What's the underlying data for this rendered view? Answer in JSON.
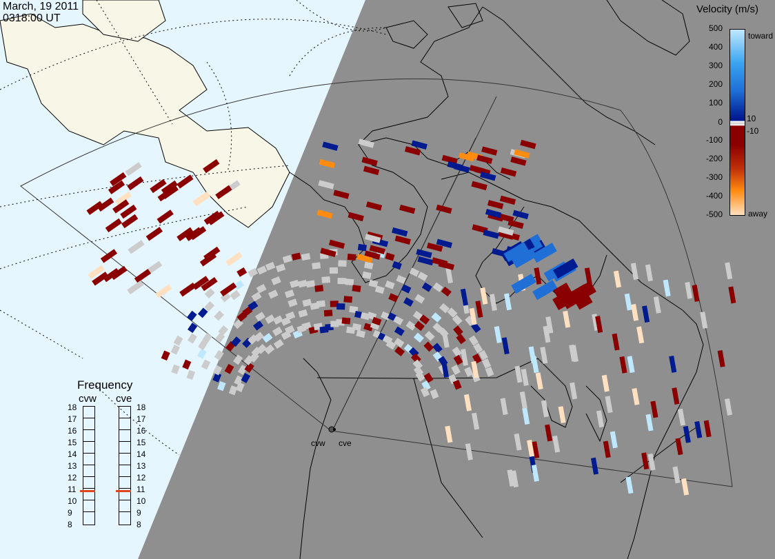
{
  "header": {
    "date": "March, 19 2011",
    "time": "0318:00 UT"
  },
  "velocity_scale": {
    "title": "Velocity (m/s)",
    "ticks": [
      "500",
      "400",
      "300",
      "200",
      "100",
      "10",
      "0",
      "-10",
      "-100",
      "-200",
      "-300",
      "-400",
      "-500"
    ],
    "toward_label": "toward",
    "away_label": "away",
    "colors": {
      "toward_max": "#bfe8ff",
      "toward_high": "#3aa4ef",
      "toward_mid": "#1f6fd6",
      "toward_low": "#001a8f",
      "ground": "#cccccc",
      "away_low": "#8a0000",
      "away_mid": "#c0300a",
      "away_high": "#ff8c10",
      "away_max": "#ffe0c0"
    }
  },
  "frequency_panel": {
    "title": "Frequency",
    "radars": [
      "cvw",
      "cve"
    ],
    "levels": [
      "18",
      "17",
      "16",
      "15",
      "14",
      "13",
      "12",
      "11",
      "10",
      "9",
      "8"
    ],
    "selected_mhz": {
      "cvw": 10.8,
      "cve": 10.8
    }
  },
  "map": {
    "sites": [
      "cvw",
      "cve"
    ],
    "colors": {
      "night_side": "#8f8f8f",
      "day_ocean": "#e6f6ff",
      "day_land": "#f8f6e6",
      "coastline": "#000000"
    }
  }
}
